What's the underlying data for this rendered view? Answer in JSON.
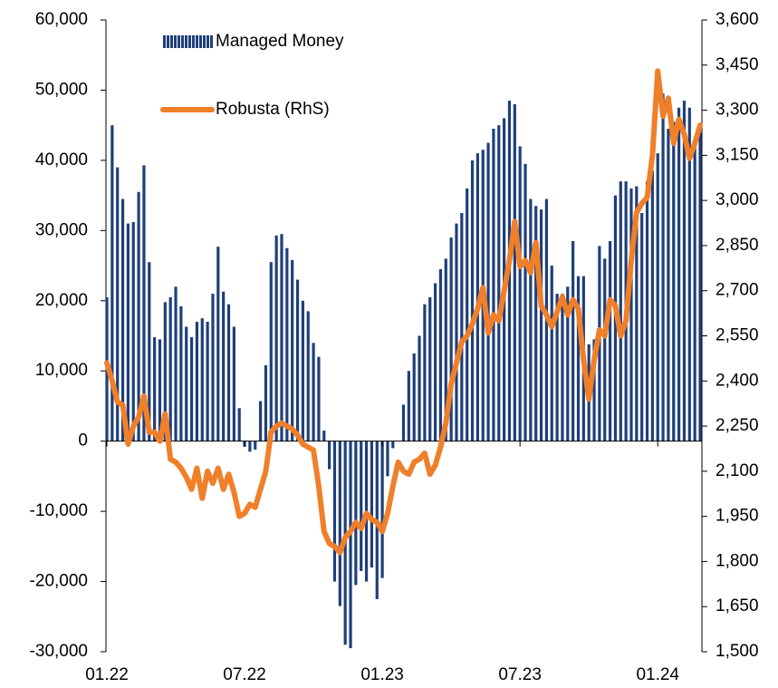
{
  "chart_data": {
    "type": "bar",
    "categories": [
      "01.22",
      null,
      null,
      null,
      null,
      null,
      null,
      null,
      null,
      null,
      null,
      null,
      null,
      null,
      null,
      null,
      null,
      null,
      null,
      null,
      null,
      null,
      null,
      null,
      null,
      null,
      "07.22",
      null,
      null,
      null,
      null,
      null,
      null,
      null,
      null,
      null,
      null,
      null,
      null,
      null,
      null,
      null,
      null,
      null,
      null,
      null,
      null,
      null,
      null,
      null,
      null,
      null,
      "01.23",
      null,
      null,
      null,
      null,
      null,
      null,
      null,
      null,
      null,
      null,
      null,
      null,
      null,
      null,
      null,
      null,
      null,
      null,
      null,
      null,
      null,
      null,
      null,
      null,
      null,
      "07.23",
      null,
      null,
      null,
      null,
      null,
      null,
      null,
      null,
      null,
      null,
      null,
      null,
      null,
      null,
      null,
      null,
      null,
      null,
      null,
      null,
      null,
      null,
      null,
      null,
      null,
      "01.24",
      null,
      null,
      null,
      null,
      null,
      null,
      null,
      null
    ],
    "series": [
      {
        "name": "Managed Money",
        "color": "#1f3f7a",
        "values": [
          20500,
          45000,
          39000,
          34500,
          31000,
          31200,
          35500,
          39300,
          25500,
          14800,
          14500,
          19800,
          20500,
          22000,
          19200,
          16300,
          14800,
          17000,
          17500,
          17000,
          21000,
          27700,
          21300,
          19500,
          16300,
          4700,
          -800,
          -1500,
          -1200,
          5700,
          10800,
          25500,
          29300,
          29500,
          27500,
          25800,
          23000,
          20000,
          18500,
          14000,
          12000,
          1500,
          -4000,
          -20000,
          -23500,
          -29000,
          -29500,
          -20500,
          -18500,
          -20000,
          -18000,
          -22500,
          -19500,
          -5000,
          -1000,
          0,
          5200,
          10000,
          12500,
          15000,
          19500,
          20500,
          22500,
          24500,
          26000,
          29000,
          31000,
          32500,
          36000,
          40000,
          41000,
          41500,
          42500,
          44500,
          45000,
          46000,
          48500,
          48000,
          42000,
          39500,
          34500,
          33500,
          33000,
          34500,
          25000,
          21000,
          21000,
          22000,
          28500,
          23500,
          23500,
          13800,
          14500,
          27800,
          26000,
          28500,
          35000,
          37000,
          37000,
          36000,
          36300,
          32500,
          37000,
          38500,
          41000,
          49500,
          44500,
          45500,
          47500,
          48500,
          47500,
          43000,
          44000
        ]
      },
      {
        "name": "Robusta (RhS)",
        "type": "line",
        "axis": "y2",
        "color": "#f07f2a",
        "values": [
          2460,
          2400,
          2330,
          2320,
          2190,
          2250,
          2280,
          2350,
          2230,
          2230,
          2200,
          2290,
          2140,
          2130,
          2110,
          2080,
          2040,
          2110,
          2010,
          2100,
          2060,
          2110,
          2040,
          2090,
          2030,
          1950,
          1960,
          1990,
          1980,
          2040,
          2100,
          2230,
          2250,
          2260,
          2250,
          2240,
          2220,
          2190,
          2180,
          2170,
          2050,
          1900,
          1860,
          1850,
          1830,
          1880,
          1900,
          1930,
          1910,
          1960,
          1940,
          1930,
          1900,
          1960,
          2050,
          2130,
          2100,
          2090,
          2130,
          2140,
          2160,
          2090,
          2120,
          2180,
          2260,
          2390,
          2460,
          2530,
          2550,
          2590,
          2640,
          2710,
          2560,
          2620,
          2600,
          2700,
          2800,
          2930,
          2780,
          2800,
          2760,
          2860,
          2650,
          2620,
          2580,
          2630,
          2680,
          2620,
          2670,
          2640,
          2470,
          2340,
          2470,
          2570,
          2550,
          2670,
          2650,
          2550,
          2600,
          2800,
          2960,
          2990,
          3010,
          3150,
          3430,
          3280,
          3340,
          3190,
          3270,
          3220,
          3140,
          3190,
          3250
        ]
      }
    ],
    "ylim": [
      -30000,
      60000
    ],
    "yticks": [
      {
        "value": -30000,
        "label": "-30,000"
      },
      {
        "value": -20000,
        "label": "-20,000"
      },
      {
        "value": -10000,
        "label": "-10,000"
      },
      0,
      {
        "value": 10000,
        "label": "10,000"
      },
      {
        "value": 20000,
        "label": "20,000"
      },
      {
        "value": 30000,
        "label": "30,000"
      },
      {
        "value": 40000,
        "label": "40,000"
      },
      {
        "value": 50000,
        "label": "50,000"
      },
      {
        "value": 60000,
        "label": "60,000"
      }
    ],
    "y2lim": [
      1500,
      3600
    ],
    "y2ticks": [
      {
        "value": 1500,
        "label": "1,500"
      },
      {
        "value": 1650,
        "label": "1,650"
      },
      {
        "value": 1800,
        "label": "1,800"
      },
      {
        "value": 1950,
        "label": "1,950"
      },
      {
        "value": 2100,
        "label": "2,100"
      },
      {
        "value": 2250,
        "label": "2,250"
      },
      {
        "value": 2400,
        "label": "2,400"
      },
      {
        "value": 2550,
        "label": "2,550"
      },
      {
        "value": 2700,
        "label": "2,700"
      },
      {
        "value": 2850,
        "label": "2,850"
      },
      {
        "value": 3000,
        "label": "3,000"
      },
      {
        "value": 3150,
        "label": "3,150"
      },
      {
        "value": 3300,
        "label": "3,300"
      },
      {
        "value": 3450,
        "label": "3,450"
      },
      {
        "value": 3600,
        "label": "3,600"
      }
    ],
    "legend": "upper left"
  }
}
